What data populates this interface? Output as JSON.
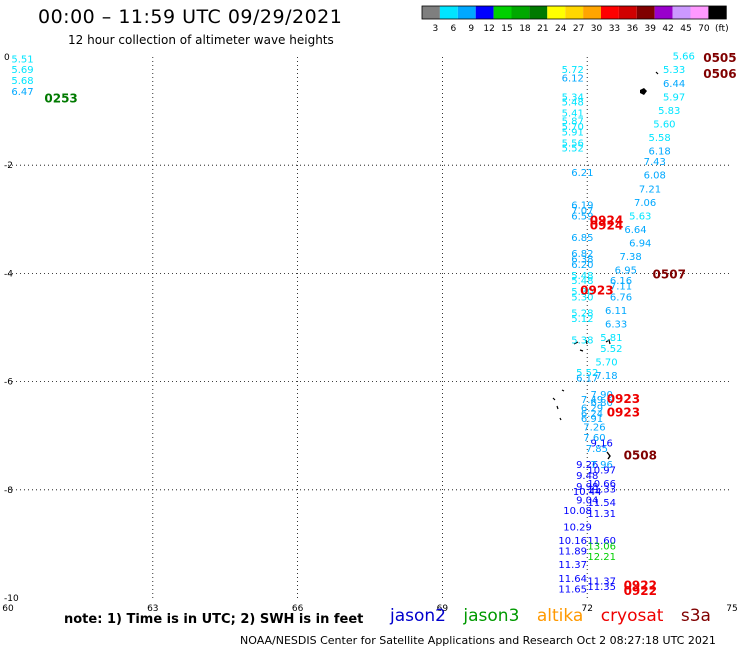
{
  "title": "00:00 – 11:59 UTC 09/29/2021",
  "subtitle": "12 hour collection of altimeter wave heights",
  "note": "note:  1) Time is in UTC;  2) SWH is in feet",
  "credit": "NOAA/NESDIS Center for Satellite Applications and Research    Oct  2 08:27:18 UTC 2021",
  "colorbar": {
    "labels": [
      "3",
      "6",
      "9",
      "12",
      "15",
      "18",
      "21",
      "24",
      "27",
      "30",
      "33",
      "36",
      "39",
      "42",
      "45",
      "70",
      "(ft)"
    ],
    "colors": [
      "#7f7f7f",
      "#00e5ff",
      "#00a8ff",
      "#0000ff",
      "#00d000",
      "#00a800",
      "#007a00",
      "#ffff00",
      "#ffd700",
      "#ffa500",
      "#ff0000",
      "#d00000",
      "#800000",
      "#9900cc",
      "#cc99ff",
      "#ff99ff",
      "#000000"
    ]
  },
  "satellites": [
    {
      "name": "jason2",
      "color": "#0000cc"
    },
    {
      "name": "jason3",
      "color": "#009900"
    },
    {
      "name": "altika",
      "color": "#ff9900"
    },
    {
      "name": "cryosat",
      "color": "#ee0000"
    },
    {
      "name": "s3a",
      "color": "#800000"
    }
  ],
  "axes": {
    "x_ticks": [
      60,
      63,
      66,
      69,
      72,
      75
    ],
    "y_ticks": [
      0,
      -2,
      -4,
      -6,
      -8,
      -10
    ],
    "xlim": [
      60,
      75
    ],
    "ylim": [
      -10,
      0
    ]
  },
  "chart_data": {
    "type": "scatter",
    "points": [
      {
        "lon": 60.3,
        "lat": -0.1,
        "v": "5.51",
        "c": "#00e5ff"
      },
      {
        "lon": 60.3,
        "lat": -0.3,
        "v": "5.69",
        "c": "#00e5ff"
      },
      {
        "lon": 60.3,
        "lat": -0.5,
        "v": "5.68",
        "c": "#00e5ff"
      },
      {
        "lon": 60.3,
        "lat": -0.7,
        "v": "6.47",
        "c": "#00a8ff"
      },
      {
        "lon": 71.7,
        "lat": -0.3,
        "v": "5.72",
        "c": "#00e5ff"
      },
      {
        "lon": 71.7,
        "lat": -0.45,
        "v": "6.12",
        "c": "#00a8ff"
      },
      {
        "lon": 71.7,
        "lat": -0.8,
        "v": "5.34",
        "c": "#00e5ff"
      },
      {
        "lon": 71.7,
        "lat": -0.9,
        "v": "5.48",
        "c": "#00e5ff"
      },
      {
        "lon": 71.7,
        "lat": -1.1,
        "v": "5.41",
        "c": "#00e5ff"
      },
      {
        "lon": 71.7,
        "lat": -1.25,
        "v": "5.87",
        "c": "#00e5ff"
      },
      {
        "lon": 71.7,
        "lat": -1.35,
        "v": "5.70",
        "c": "#00e5ff"
      },
      {
        "lon": 71.7,
        "lat": -1.45,
        "v": "5.91",
        "c": "#00e5ff"
      },
      {
        "lon": 71.7,
        "lat": -1.65,
        "v": "5.56",
        "c": "#00e5ff"
      },
      {
        "lon": 71.7,
        "lat": -1.75,
        "v": "5.52",
        "c": "#00e5ff"
      },
      {
        "lon": 71.9,
        "lat": -2.2,
        "v": "6.21",
        "c": "#00a8ff"
      },
      {
        "lon": 71.9,
        "lat": -2.8,
        "v": "6.19",
        "c": "#00a8ff"
      },
      {
        "lon": 71.9,
        "lat": -2.9,
        "v": "7.07",
        "c": "#00a8ff"
      },
      {
        "lon": 71.9,
        "lat": -3.0,
        "v": "6.59",
        "c": "#00a8ff"
      },
      {
        "lon": 71.9,
        "lat": -3.4,
        "v": "6.85",
        "c": "#00a8ff"
      },
      {
        "lon": 71.9,
        "lat": -3.7,
        "v": "6.82",
        "c": "#00a8ff"
      },
      {
        "lon": 71.9,
        "lat": -3.8,
        "v": "6.38",
        "c": "#00a8ff"
      },
      {
        "lon": 71.9,
        "lat": -3.9,
        "v": "6.20",
        "c": "#00a8ff"
      },
      {
        "lon": 71.9,
        "lat": -4.1,
        "v": "5.48",
        "c": "#00e5ff"
      },
      {
        "lon": 71.9,
        "lat": -4.2,
        "v": "5.48",
        "c": "#00e5ff"
      },
      {
        "lon": 71.9,
        "lat": -4.4,
        "v": "5.30",
        "c": "#00e5ff"
      },
      {
        "lon": 71.9,
        "lat": -4.5,
        "v": "5.30",
        "c": "#00e5ff"
      },
      {
        "lon": 71.9,
        "lat": -4.8,
        "v": "5.28",
        "c": "#00e5ff"
      },
      {
        "lon": 71.9,
        "lat": -4.9,
        "v": "5.12",
        "c": "#00e5ff"
      },
      {
        "lon": 71.9,
        "lat": -5.3,
        "v": "5.38",
        "c": "#00e5ff"
      },
      {
        "lon": 72.0,
        "lat": -5.9,
        "v": "5.52",
        "c": "#00e5ff"
      },
      {
        "lon": 72.0,
        "lat": -6.0,
        "v": "6.17",
        "c": "#00a8ff"
      },
      {
        "lon": 72.1,
        "lat": -6.4,
        "v": "7.49",
        "c": "#00a8ff"
      },
      {
        "lon": 72.1,
        "lat": -6.55,
        "v": "6.29",
        "c": "#00a8ff"
      },
      {
        "lon": 72.1,
        "lat": -6.65,
        "v": "6.24",
        "c": "#00a8ff"
      },
      {
        "lon": 72.1,
        "lat": -6.75,
        "v": "6.91",
        "c": "#00a8ff"
      },
      {
        "lon": 72.15,
        "lat": -6.9,
        "v": "7.26",
        "c": "#00a8ff"
      },
      {
        "lon": 72.15,
        "lat": -7.1,
        "v": "7.60",
        "c": "#00a8ff"
      },
      {
        "lon": 72.2,
        "lat": -7.3,
        "v": "7.85",
        "c": "#00a8ff"
      },
      {
        "lon": 72.0,
        "lat": -7.6,
        "v": "9.26",
        "c": "#0000ff"
      },
      {
        "lon": 72.0,
        "lat": -7.8,
        "v": "9.48",
        "c": "#0000ff"
      },
      {
        "lon": 72.0,
        "lat": -8.0,
        "v": "9.98",
        "c": "#0000ff"
      },
      {
        "lon": 72.0,
        "lat": -8.1,
        "v": "10.44",
        "c": "#0000ff"
      },
      {
        "lon": 72.0,
        "lat": -8.25,
        "v": "9.04",
        "c": "#0000ff"
      },
      {
        "lon": 71.8,
        "lat": -8.45,
        "v": "10.08",
        "c": "#0000ff"
      },
      {
        "lon": 71.8,
        "lat": -8.75,
        "v": "10.29",
        "c": "#0000ff"
      },
      {
        "lon": 71.7,
        "lat": -9.0,
        "v": "10.16",
        "c": "#0000ff"
      },
      {
        "lon": 71.7,
        "lat": -9.2,
        "v": "11.89",
        "c": "#0000ff"
      },
      {
        "lon": 71.7,
        "lat": -9.45,
        "v": "11.37",
        "c": "#0000ff"
      },
      {
        "lon": 71.7,
        "lat": -9.7,
        "v": "11.64",
        "c": "#0000ff"
      },
      {
        "lon": 71.7,
        "lat": -9.9,
        "v": "11.65",
        "c": "#0000ff"
      },
      {
        "lon": 74.0,
        "lat": -0.05,
        "v": "5.66",
        "c": "#00e5ff"
      },
      {
        "lon": 73.8,
        "lat": -0.3,
        "v": "5.33",
        "c": "#00e5ff"
      },
      {
        "lon": 73.8,
        "lat": -0.55,
        "v": "6.44",
        "c": "#00a8ff"
      },
      {
        "lon": 73.8,
        "lat": -0.8,
        "v": "5.97",
        "c": "#00e5ff"
      },
      {
        "lon": 73.7,
        "lat": -1.05,
        "v": "5.83",
        "c": "#00e5ff"
      },
      {
        "lon": 73.6,
        "lat": -1.3,
        "v": "5.60",
        "c": "#00e5ff"
      },
      {
        "lon": 73.5,
        "lat": -1.55,
        "v": "5.58",
        "c": "#00e5ff"
      },
      {
        "lon": 73.5,
        "lat": -1.8,
        "v": "6.18",
        "c": "#00a8ff"
      },
      {
        "lon": 73.4,
        "lat": -2.0,
        "v": "7.43",
        "c": "#00a8ff"
      },
      {
        "lon": 73.4,
        "lat": -2.25,
        "v": "6.08",
        "c": "#00a8ff"
      },
      {
        "lon": 73.3,
        "lat": -2.5,
        "v": "7.21",
        "c": "#00a8ff"
      },
      {
        "lon": 73.2,
        "lat": -2.75,
        "v": "7.06",
        "c": "#00a8ff"
      },
      {
        "lon": 73.1,
        "lat": -3.0,
        "v": "5.63",
        "c": "#00e5ff"
      },
      {
        "lon": 73.0,
        "lat": -3.25,
        "v": "6.64",
        "c": "#00a8ff"
      },
      {
        "lon": 73.1,
        "lat": -3.5,
        "v": "6.94",
        "c": "#00a8ff"
      },
      {
        "lon": 72.9,
        "lat": -3.75,
        "v": "7.38",
        "c": "#00a8ff"
      },
      {
        "lon": 72.8,
        "lat": -4.0,
        "v": "6.95",
        "c": "#00a8ff"
      },
      {
        "lon": 72.7,
        "lat": -4.2,
        "v": "6.16",
        "c": "#00a8ff"
      },
      {
        "lon": 72.7,
        "lat": -4.3,
        "v": "7.11",
        "c": "#00a8ff"
      },
      {
        "lon": 72.7,
        "lat": -4.5,
        "v": "6.76",
        "c": "#00a8ff"
      },
      {
        "lon": 72.6,
        "lat": -4.75,
        "v": "6.11",
        "c": "#00a8ff"
      },
      {
        "lon": 72.6,
        "lat": -5.0,
        "v": "6.33",
        "c": "#00a8ff"
      },
      {
        "lon": 72.5,
        "lat": -5.25,
        "v": "5.81",
        "c": "#00e5ff"
      },
      {
        "lon": 72.5,
        "lat": -5.45,
        "v": "5.52",
        "c": "#00e5ff"
      },
      {
        "lon": 72.4,
        "lat": -5.7,
        "v": "5.70",
        "c": "#00e5ff"
      },
      {
        "lon": 72.4,
        "lat": -5.95,
        "v": "7.18",
        "c": "#00a8ff"
      },
      {
        "lon": 72.3,
        "lat": -6.3,
        "v": "7.90",
        "c": "#00a8ff"
      },
      {
        "lon": 72.3,
        "lat": -6.45,
        "v": "6.80",
        "c": "#00a8ff"
      },
      {
        "lon": 72.3,
        "lat": -7.2,
        "v": "9.16",
        "c": "#0000ff"
      },
      {
        "lon": 72.3,
        "lat": -7.6,
        "v": "7.96",
        "c": "#00a8ff"
      },
      {
        "lon": 72.3,
        "lat": -7.7,
        "v": "10.97",
        "c": "#0000ff"
      },
      {
        "lon": 72.3,
        "lat": -7.95,
        "v": "10.66",
        "c": "#0000ff"
      },
      {
        "lon": 72.3,
        "lat": -8.05,
        "v": "11.33",
        "c": "#0000ff"
      },
      {
        "lon": 72.3,
        "lat": -8.3,
        "v": "11.54",
        "c": "#0000ff"
      },
      {
        "lon": 72.3,
        "lat": -8.5,
        "v": "11.31",
        "c": "#0000ff"
      },
      {
        "lon": 72.3,
        "lat": -9.0,
        "v": "11.60",
        "c": "#0000ff"
      },
      {
        "lon": 72.3,
        "lat": -9.1,
        "v": "13.06",
        "c": "#00d000"
      },
      {
        "lon": 72.3,
        "lat": -9.3,
        "v": "12.21",
        "c": "#00d000"
      },
      {
        "lon": 72.3,
        "lat": -9.75,
        "v": "11.37",
        "c": "#0000ff"
      },
      {
        "lon": 72.3,
        "lat": -9.85,
        "v": "11.35",
        "c": "#0000ff"
      }
    ],
    "passes": [
      {
        "lon": 61.1,
        "lat": -0.75,
        "t": "0253",
        "c": "#007a00"
      },
      {
        "lon": 74.75,
        "lat": 0.0,
        "t": "0505",
        "c": "#800000"
      },
      {
        "lon": 74.75,
        "lat": -0.3,
        "t": "0506",
        "c": "#800000"
      },
      {
        "lon": 72.4,
        "lat": -3.0,
        "t": "0924",
        "c": "#ee0000"
      },
      {
        "lon": 72.4,
        "lat": -3.1,
        "t": "0924",
        "c": "#ee0000"
      },
      {
        "lon": 72.2,
        "lat": -4.3,
        "t": "0923",
        "c": "#ee0000"
      },
      {
        "lon": 73.7,
        "lat": -4.0,
        "t": "0507",
        "c": "#800000"
      },
      {
        "lon": 72.75,
        "lat": -6.3,
        "t": "0923",
        "c": "#ee0000"
      },
      {
        "lon": 72.75,
        "lat": -6.55,
        "t": "0923",
        "c": "#ee0000"
      },
      {
        "lon": 73.1,
        "lat": -7.35,
        "t": "0508",
        "c": "#800000"
      },
      {
        "lon": 73.1,
        "lat": -9.75,
        "t": "0922",
        "c": "#ee0000"
      },
      {
        "lon": 73.1,
        "lat": -9.85,
        "t": "0922",
        "c": "#ee0000"
      }
    ]
  }
}
